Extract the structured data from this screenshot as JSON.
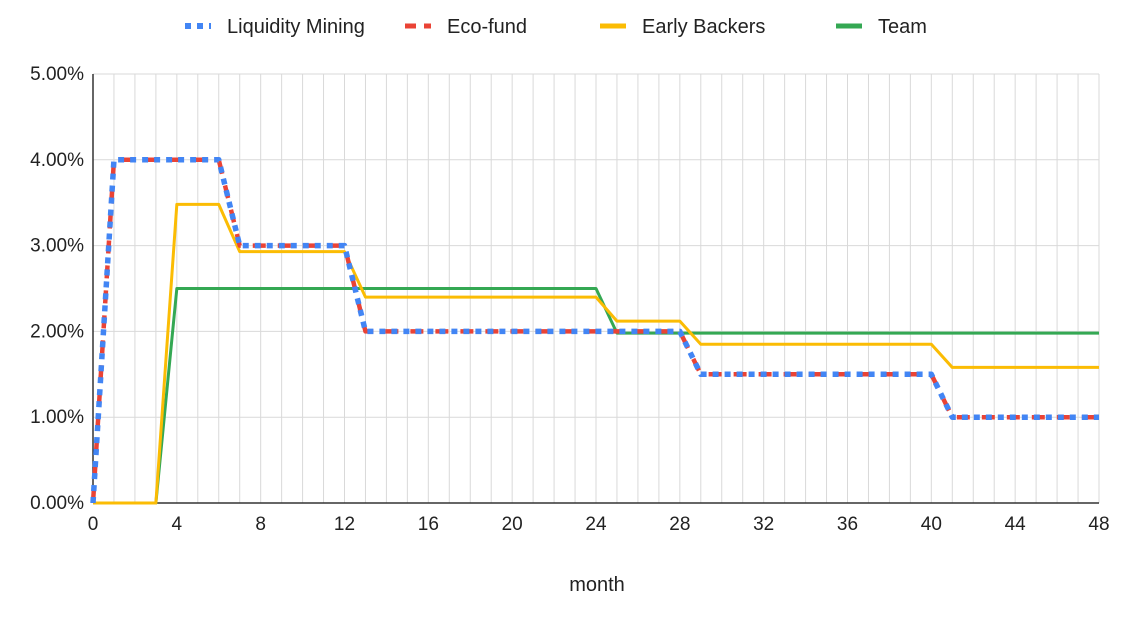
{
  "chart_data": {
    "type": "line",
    "title": "",
    "xlabel": "month",
    "ylabel": "",
    "xlim": [
      0,
      48
    ],
    "ylim": [
      0,
      5
    ],
    "x_ticks": [
      0,
      4,
      8,
      12,
      16,
      20,
      24,
      28,
      32,
      36,
      40,
      44,
      48
    ],
    "x_tick_labels": [
      "0",
      "4",
      "8",
      "12",
      "16",
      "20",
      "24",
      "28",
      "32",
      "36",
      "40",
      "44",
      "48"
    ],
    "y_ticks": [
      0,
      1,
      2,
      3,
      4,
      5
    ],
    "y_tick_labels": [
      "0.00%",
      "1.00%",
      "2.00%",
      "3.00%",
      "4.00%",
      "5.00%"
    ],
    "grid": true,
    "legend_position": "top",
    "series": [
      {
        "name": "Liquidity Mining",
        "color": "#4285F4",
        "style": "dotted",
        "x": [
          0,
          1,
          6,
          7,
          12,
          13,
          24,
          25,
          28,
          29,
          40,
          41,
          48
        ],
        "y": [
          0,
          4.0,
          4.0,
          3.0,
          3.0,
          2.0,
          2.0,
          2.0,
          2.0,
          1.5,
          1.5,
          1.0,
          1.0
        ]
      },
      {
        "name": "Eco-fund",
        "color": "#EA4335",
        "style": "dashed",
        "x": [
          0,
          1,
          6,
          7,
          12,
          13,
          24,
          25,
          28,
          29,
          40,
          41,
          48
        ],
        "y": [
          0,
          4.0,
          4.0,
          3.0,
          3.0,
          2.0,
          2.0,
          2.0,
          2.0,
          1.5,
          1.5,
          1.0,
          1.0
        ]
      },
      {
        "name": "Early Backers",
        "color": "#FBBC04",
        "style": "solid",
        "x": [
          0,
          3,
          4,
          6,
          7,
          12,
          13,
          24,
          25,
          28,
          29,
          40,
          41,
          48
        ],
        "y": [
          0,
          0,
          3.48,
          3.48,
          2.93,
          2.93,
          2.4,
          2.4,
          2.12,
          2.12,
          1.85,
          1.85,
          1.58,
          1.58
        ]
      },
      {
        "name": "Team",
        "color": "#34A853",
        "style": "solid",
        "x": [
          0,
          3,
          4,
          24,
          25,
          48
        ],
        "y": [
          0,
          0,
          2.5,
          2.5,
          1.98,
          1.98
        ]
      }
    ]
  }
}
